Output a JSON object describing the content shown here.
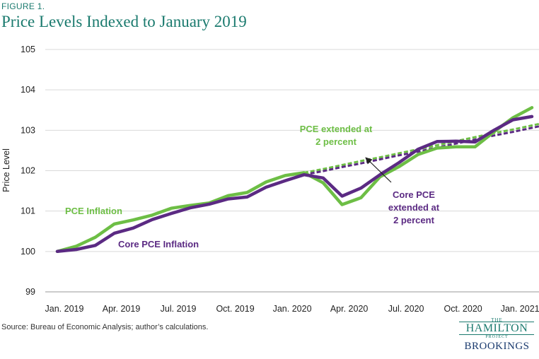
{
  "figure_label": "FIGURE 1.",
  "title": "Price Levels Indexed to January 2019",
  "source": "Source: Bureau of Economic Analysis; author’s calculations.",
  "logo": {
    "the": "THE",
    "hamilton": "HAMILTON",
    "project": "PROJECT",
    "brookings": "BROOKINGS"
  },
  "colors": {
    "green": "#6dbe45",
    "purple": "#5b2a83",
    "grid": "#d9d9d9",
    "title": "#1a7a6e"
  },
  "chart_data": {
    "type": "line",
    "title": "Price Levels Indexed to January 2019",
    "ylabel": "Price Level",
    "xlabel": "",
    "ylim": [
      99,
      105
    ],
    "yticks": [
      99,
      100,
      101,
      102,
      103,
      104,
      105
    ],
    "xtick_labels": [
      "Jan. 2019",
      "Apr. 2019",
      "Jul. 2019",
      "Oct. 2019",
      "Jan. 2020",
      "Apr. 2020",
      "Jul. 2020",
      "Oct. 2020",
      "Jan. 2021"
    ],
    "xtick_index": [
      0,
      3,
      6,
      9,
      12,
      15,
      18,
      21,
      24
    ],
    "n_months": 26,
    "series": [
      {
        "name": "PCE Inflation",
        "label": "PCE Inflation",
        "color": "#6dbe45",
        "values": [
          100.0,
          100.13,
          100.35,
          100.68,
          100.78,
          100.9,
          101.07,
          101.14,
          101.2,
          101.38,
          101.46,
          101.72,
          101.88,
          101.95,
          101.7,
          101.16,
          101.33,
          101.85,
          102.1,
          102.4,
          102.56,
          102.59,
          102.59,
          102.96,
          103.31,
          103.56
        ]
      },
      {
        "name": "Core PCE Inflation",
        "label": "Core PCE Inflation",
        "color": "#5b2a83",
        "values": [
          100.0,
          100.05,
          100.15,
          100.45,
          100.58,
          100.79,
          100.94,
          101.08,
          101.17,
          101.3,
          101.35,
          101.59,
          101.75,
          101.9,
          101.82,
          101.37,
          101.57,
          101.9,
          102.2,
          102.53,
          102.72,
          102.73,
          102.71,
          103.0,
          103.26,
          103.34
        ]
      },
      {
        "name": "PCE extended at 2 percent",
        "label": "PCE extended at 2 percent",
        "color": "#6dbe45",
        "dashed": true,
        "start_index": 13,
        "values": [
          101.95,
          102.04,
          102.14,
          102.24,
          102.33,
          102.43,
          102.53,
          102.63,
          102.73,
          102.83,
          102.93,
          103.02,
          103.12,
          103.22
        ]
      },
      {
        "name": "Core PCE extended at 2 percent",
        "label": "Core PCE extended at 2 percent",
        "color": "#5b2a83",
        "dashed": true,
        "start_index": 13,
        "values": [
          101.9,
          101.99,
          102.09,
          102.18,
          102.28,
          102.38,
          102.47,
          102.57,
          102.67,
          102.77,
          102.87,
          102.96,
          103.06,
          103.16
        ]
      }
    ],
    "annotations": {
      "pce": "PCE Inflation",
      "core": "Core PCE Inflation",
      "pce_ext_1": "PCE extended at",
      "pce_ext_2": "2 percent",
      "core_ext_1": "Core PCE",
      "core_ext_2": "extended at",
      "core_ext_3": "2 percent"
    }
  }
}
